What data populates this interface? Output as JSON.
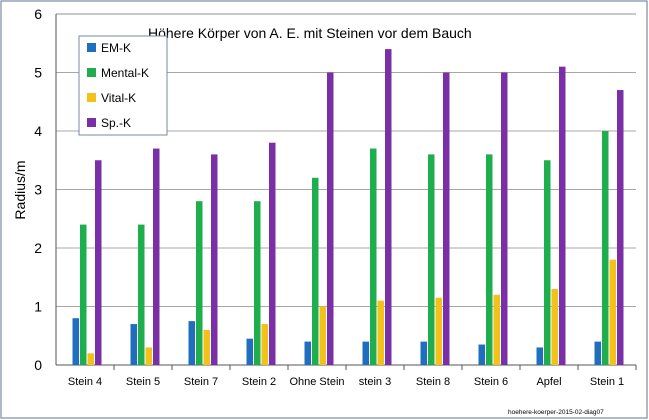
{
  "chart_data": {
    "type": "bar",
    "title": "Höhere Körper von A. E.  mit Steinen vor dem Bauch",
    "xlabel": "",
    "ylabel": "Radius/m",
    "ylim": [
      0,
      6
    ],
    "yticks": [
      0,
      1,
      2,
      3,
      4,
      5,
      6
    ],
    "grid": "horizontal",
    "legend_position": "top-left",
    "categories": [
      "Stein 4",
      "Stein 5",
      "Stein 7",
      "Stein 2",
      "Ohne Stein",
      "stein 3",
      "Stein 8",
      "Stein 6",
      "Apfel",
      "Stein 1"
    ],
    "series": [
      {
        "name": "EM-K",
        "color": "#1f6fbf",
        "values": [
          0.8,
          0.7,
          0.75,
          0.45,
          0.4,
          0.4,
          0.4,
          0.35,
          0.3,
          0.4
        ]
      },
      {
        "name": "Mental-K",
        "color": "#1fae4e",
        "values": [
          2.4,
          2.4,
          2.8,
          2.8,
          3.2,
          3.7,
          3.6,
          3.6,
          3.5,
          4.0
        ]
      },
      {
        "name": "Vital-K",
        "color": "#f2c21b",
        "values": [
          0.2,
          0.3,
          0.6,
          0.7,
          1.0,
          1.1,
          1.15,
          1.2,
          1.3,
          1.8
        ]
      },
      {
        "name": "Sp.-K",
        "color": "#7b2fa6",
        "values": [
          3.5,
          3.7,
          3.6,
          3.8,
          5.0,
          5.4,
          5.0,
          5.0,
          5.1,
          4.7
        ]
      }
    ],
    "footnote": "hoehere-koerper-2015-02-diag07"
  }
}
